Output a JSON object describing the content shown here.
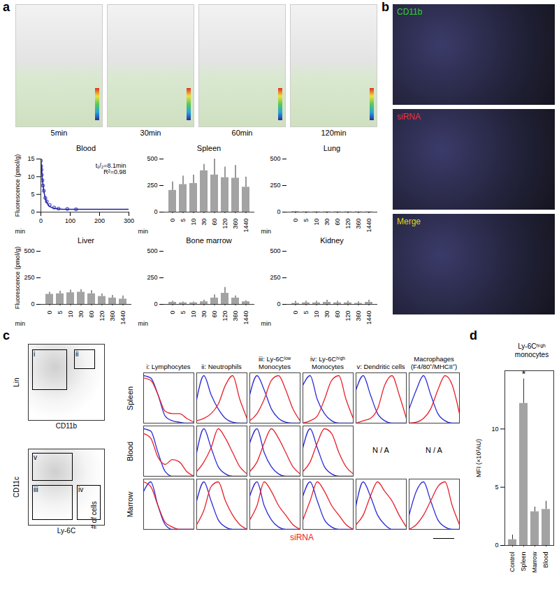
{
  "panel_labels": [
    "a",
    "b",
    "c",
    "d"
  ],
  "images": {
    "a": [
      "5min",
      "30min",
      "60min",
      "120min"
    ],
    "b": [
      "CD11b",
      "siRNA",
      "Merge"
    ]
  },
  "gating": [
    {
      "xlabel": "CD11b",
      "ylabel": "Lin",
      "gates": [
        "i",
        "ii"
      ]
    },
    {
      "xlabel": "Ly-6C",
      "ylabel": "CD11c",
      "gates": [
        "v",
        "iii",
        "iv"
      ]
    }
  ],
  "chart_data": [
    {
      "type": "line",
      "title": "Blood",
      "xlabel": "min",
      "ylabel": "Fluorescence (pmol/g)",
      "xlim": [
        0,
        300
      ],
      "xticks": [
        0,
        100,
        200,
        300
      ],
      "ylim": [
        0,
        15
      ],
      "yticks": [
        0,
        5,
        10,
        15
      ],
      "annotations": [
        "t₁/₂=8.1min",
        "R²=0.98"
      ],
      "series": [
        {
          "type": "scatter",
          "color": "#6b6bd6",
          "marker": "circle",
          "x": [
            0,
            1,
            2,
            3,
            5,
            7,
            10,
            15,
            20,
            30,
            45,
            60,
            90,
            120
          ],
          "values": [
            14.5,
            13,
            12,
            10.5,
            9,
            7.5,
            6,
            4,
            3,
            2,
            1.3,
            1,
            0.9,
            0.8
          ]
        },
        {
          "type": "line",
          "color": "#1c1c9c",
          "x": [
            0,
            5,
            10,
            15,
            20,
            30,
            45,
            60,
            90,
            120,
            200,
            300
          ],
          "values": [
            15,
            9.4,
            6,
            4,
            2.7,
            1.6,
            1.1,
            0.9,
            0.8,
            0.8,
            0.8,
            0.8
          ]
        }
      ]
    },
    {
      "type": "bar",
      "title": "Spleen",
      "xlabel": "min",
      "color": "#a3a3a3",
      "categories": [
        "0",
        "5",
        "10",
        "30",
        "60",
        "120",
        "360",
        "1440"
      ],
      "values": [
        205,
        260,
        270,
        390,
        350,
        325,
        320,
        235
      ],
      "errors": [
        80,
        80,
        80,
        60,
        150,
        100,
        120,
        95
      ],
      "ylim": [
        0,
        500
      ],
      "yticks": [
        0,
        250,
        500
      ]
    },
    {
      "type": "bar",
      "title": "Lung",
      "xlabel": "min",
      "color": "#a3a3a3",
      "categories": [
        "0",
        "5",
        "10",
        "30",
        "60",
        "120",
        "360",
        "1440"
      ],
      "values": [
        5,
        3,
        3,
        3,
        3,
        3,
        3,
        3
      ],
      "errors": [
        3,
        2,
        2,
        2,
        2,
        2,
        2,
        2
      ],
      "ylim": [
        0,
        500
      ],
      "yticks": [
        0,
        250,
        500
      ]
    },
    {
      "type": "bar",
      "title": "Liver",
      "xlabel": "min",
      "ylabel": "Fluorescence (pmol/g)",
      "color": "#a3a3a3",
      "categories": [
        "0",
        "5",
        "10",
        "30",
        "60",
        "120",
        "360",
        "1440"
      ],
      "values": [
        95,
        100,
        110,
        115,
        100,
        75,
        60,
        50
      ],
      "errors": [
        20,
        25,
        25,
        25,
        30,
        25,
        25,
        30
      ],
      "ylim": [
        0,
        500
      ],
      "yticks": [
        0,
        250,
        500
      ]
    },
    {
      "type": "bar",
      "title": "Bone marrow",
      "xlabel": "min",
      "color": "#a3a3a3",
      "categories": [
        "0",
        "5",
        "10",
        "30",
        "60",
        "120",
        "360",
        "1440"
      ],
      "values": [
        20,
        15,
        15,
        25,
        60,
        105,
        60,
        25
      ],
      "errors": [
        10,
        8,
        8,
        15,
        30,
        55,
        20,
        10
      ],
      "ylim": [
        0,
        500
      ],
      "yticks": [
        0,
        250,
        500
      ]
    },
    {
      "type": "bar",
      "title": "Kidney",
      "xlabel": "min",
      "color": "#a3a3a3",
      "categories": [
        "0",
        "5",
        "10",
        "30",
        "60",
        "120",
        "360",
        "1440"
      ],
      "values": [
        10,
        15,
        15,
        20,
        15,
        15,
        10,
        20
      ],
      "errors": [
        20,
        15,
        15,
        20,
        15,
        15,
        15,
        20
      ],
      "ylim": [
        0,
        500
      ],
      "yticks": [
        0,
        250,
        500
      ]
    },
    {
      "type": "histogram_grid",
      "xlabel": "siRNA",
      "ylabel": "# of cells",
      "tick_labels": false,
      "ylim": [
        0,
        1
      ],
      "rows": [
        "Spleen",
        "Blood",
        "Marrow"
      ],
      "columns": [
        "i: Lymphocytes",
        "ii: Neutrophils",
        "iii: Ly-6Cˡᵒʷ Monocytes",
        "iv: Ly-6Cʰⁱᵍʰ Monocytes",
        "v: Dendritic cells",
        "Macrophages (F4/80⁺/MHCII⁺)"
      ],
      "cells": [
        [
          {
            "series": [
              {
                "color": "#2b2bd6",
                "values": [
                  1,
                  0.95,
                  0.6,
                  0.15,
                  0.05,
                  0.02,
                  0,
                  0
                ]
              },
              {
                "color": "#e8202a",
                "values": [
                  0.95,
                  0.9,
                  0.6,
                  0.25,
                  0.2,
                  0.2,
                  0.1,
                  0.02
                ]
              }
            ]
          },
          {
            "series": [
              {
                "color": "#2b2bd6",
                "values": [
                  0.5,
                  1,
                  0.6,
                  0.3,
                  0.1,
                  0.02,
                  0,
                  0
                ]
              },
              {
                "color": "#e8202a",
                "values": [
                  0.05,
                  0.1,
                  0.2,
                  0.4,
                  0.8,
                  1,
                  0.5,
                  0.1
                ]
              }
            ]
          },
          {
            "series": [
              {
                "color": "#2b2bd6",
                "values": [
                  0.6,
                  1,
                  0.7,
                  0.3,
                  0.1,
                  0.02,
                  0,
                  0
                ]
              },
              {
                "color": "#e8202a",
                "values": [
                  0.05,
                  0.2,
                  0.5,
                  0.9,
                  1,
                  0.7,
                  0.3,
                  0.05
                ]
              }
            ]
          },
          {
            "series": [
              {
                "color": "#2b2bd6",
                "values": [
                  0.8,
                  1,
                  0.5,
                  0.2,
                  0.05,
                  0,
                  0,
                  0
                ]
              },
              {
                "color": "#e8202a",
                "values": [
                  0,
                  0.05,
                  0.15,
                  0.5,
                  0.9,
                  1,
                  0.5,
                  0.1
                ]
              }
            ]
          },
          {
            "series": [
              {
                "color": "#2b2bd6",
                "values": [
                  0.7,
                  1,
                  0.6,
                  0.2,
                  0.05,
                  0,
                  0,
                  0
                ]
              },
              {
                "color": "#e8202a",
                "values": [
                  0,
                  0.05,
                  0.1,
                  0.3,
                  0.8,
                  1,
                  0.6,
                  0.1
                ]
              }
            ]
          },
          {
            "series": [
              {
                "color": "#2b2bd6",
                "values": [
                  0.3,
                  0.7,
                  1,
                  0.6,
                  0.2,
                  0.05,
                  0,
                  0
                ]
              },
              {
                "color": "#e8202a",
                "values": [
                  0,
                  0.02,
                  0.1,
                  0.3,
                  0.7,
                  1,
                  0.8,
                  0.2
                ]
              }
            ]
          }
        ],
        [
          {
            "series": [
              {
                "color": "#2b2bd6",
                "values": [
                  1,
                  0.95,
                  0.5,
                  0.1,
                  0,
                  0,
                  0,
                  0
                ]
              },
              {
                "color": "#e8202a",
                "values": [
                  0.9,
                  0.8,
                  0.4,
                  0.25,
                  0.35,
                  0.3,
                  0.1,
                  0
                ]
              }
            ]
          },
          {
            "series": [
              {
                "color": "#2b2bd6",
                "values": [
                  0.5,
                  1,
                  0.6,
                  0.2,
                  0.05,
                  0,
                  0,
                  0
                ]
              },
              {
                "color": "#e8202a",
                "values": [
                  0.1,
                  0.3,
                  0.6,
                  1,
                  0.8,
                  0.5,
                  0.2,
                  0.05
                ]
              }
            ]
          },
          {
            "series": [
              {
                "color": "#2b2bd6",
                "values": [
                  0.7,
                  1,
                  0.5,
                  0.2,
                  0.05,
                  0,
                  0,
                  0
                ]
              },
              {
                "color": "#e8202a",
                "values": [
                  0.1,
                  0.3,
                  0.7,
                  1,
                  0.8,
                  0.5,
                  0.2,
                  0.05
                ]
              }
            ]
          },
          {
            "series": [
              {
                "color": "#2b2bd6",
                "values": [
                  0.6,
                  1,
                  0.6,
                  0.2,
                  0.05,
                  0,
                  0,
                  0
                ]
              },
              {
                "color": "#e8202a",
                "values": [
                  0.1,
                  0.3,
                  0.7,
                  1,
                  0.9,
                  0.5,
                  0.2,
                  0.05
                ]
              }
            ]
          },
          {
            "text": "N / A"
          },
          {
            "text": "N / A"
          }
        ],
        [
          {
            "series": [
              {
                "color": "#2b2bd6",
                "values": [
                  0.8,
                  1,
                  0.5,
                  0.1,
                  0,
                  0,
                  0,
                  0
                ]
              },
              {
                "color": "#e8202a",
                "values": [
                  1,
                  0.9,
                  0.5,
                  0.15,
                  0.05,
                  0,
                  0,
                  0
                ]
              }
            ]
          },
          {
            "series": [
              {
                "color": "#2b2bd6",
                "values": [
                  0.6,
                  1,
                  0.6,
                  0.2,
                  0.05,
                  0,
                  0,
                  0
                ]
              },
              {
                "color": "#e8202a",
                "values": [
                  0.1,
                  0.4,
                  0.9,
                  1,
                  0.6,
                  0.3,
                  0.1,
                  0
                ]
              }
            ]
          },
          {
            "series": [
              {
                "color": "#2b2bd6",
                "values": [
                  0.7,
                  1,
                  0.5,
                  0.2,
                  0.05,
                  0,
                  0,
                  0
                ]
              },
              {
                "color": "#e8202a",
                "values": [
                  0.2,
                  0.5,
                  1,
                  0.8,
                  0.5,
                  0.3,
                  0.1,
                  0
                ]
              }
            ]
          },
          {
            "series": [
              {
                "color": "#2b2bd6",
                "values": [
                  0.7,
                  1,
                  0.6,
                  0.2,
                  0.05,
                  0,
                  0,
                  0
                ]
              },
              {
                "color": "#e8202a",
                "values": [
                  0.2,
                  0.6,
                  1,
                  0.8,
                  0.5,
                  0.3,
                  0.1,
                  0
                ]
              }
            ]
          },
          {
            "series": [
              {
                "color": "#2b2bd6",
                "values": [
                  0.5,
                  1,
                  0.7,
                  0.3,
                  0.1,
                  0,
                  0,
                  0
                ]
              },
              {
                "color": "#e8202a",
                "values": [
                  0.1,
                  0.3,
                  0.7,
                  1,
                  0.8,
                  0.6,
                  0.3,
                  0.05
                ]
              }
            ]
          },
          {
            "series": [
              {
                "color": "#2b2bd6",
                "values": [
                  0.3,
                  0.8,
                  1,
                  0.6,
                  0.2,
                  0.05,
                  0,
                  0
                ]
              },
              {
                "color": "#e8202a",
                "values": [
                  0,
                  0.1,
                  0.3,
                  0.6,
                  0.9,
                  1,
                  0.5,
                  0.1
                ]
              }
            ]
          }
        ]
      ]
    },
    {
      "type": "bar",
      "title": "Ly-6Cʰⁱᵍʰ monocytes",
      "ylabel": "MFI (×10³AU)",
      "color": "#a3a3a3",
      "categories": [
        "Control",
        "Spleen",
        "Marrow",
        "Blood"
      ],
      "values": [
        0.5,
        12.2,
        2.9,
        3.1
      ],
      "errors": [
        0.4,
        2.1,
        0.4,
        0.7
      ],
      "ylim": [
        0,
        15
      ],
      "yticks": [
        0,
        5,
        10
      ],
      "annotations": [
        {
          "category": "Spleen",
          "text": "*"
        }
      ]
    }
  ]
}
